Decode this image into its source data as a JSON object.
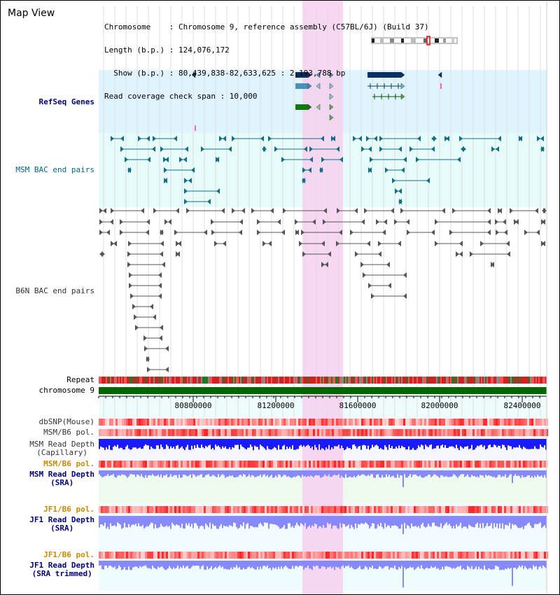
{
  "app": {
    "title": "Map View"
  },
  "info": {
    "line1": "Chromosome    : Chromosome 9, reference assembly (C57BL/6J) (Build 37)",
    "line2": "Length (b.p.) : 124,076,172",
    "line3": "  Show (b.p.) : 80,439,838-82,633,625 : 2,193,788 bp",
    "line4": "Read coverage check span : 10,000"
  },
  "tracks": {
    "refseq": "RefSeq Genes",
    "msm_bac": "MSM BAC end pairs",
    "b6n_bac": "B6N BAC end pairs",
    "repeat": "Repeat",
    "chromosome": "chromosome 9",
    "dbsnp": "dbSNP(Mouse)",
    "msm_b6_pol": "MSM/B6 pol.",
    "msm_depth_cap_1": "MSM Read Depth",
    "msm_depth_cap_2": "(Capillary)",
    "msm_b6_pol_2": "MSM/B6 pol.",
    "msm_depth_sra_1": "MSM Read Depth",
    "msm_depth_sra_2": "(SRA)",
    "jf1_b6_pol": "JF1/B6 pol.",
    "jf1_depth_sra_1": "JF1 Read Depth",
    "jf1_depth_sra_2": "(SRA)",
    "jf1_b6_pol_2": "JF1/B6 pol.",
    "jf1_depth_trim_1": "JF1 Read Depth",
    "jf1_depth_trim_2": "(SRA trimmed)"
  },
  "axis": {
    "ticks": [
      "80800000",
      "81200000",
      "81600000",
      "82000000",
      "82400000"
    ]
  },
  "colors": {
    "refseq_bg": "#e0f4ff",
    "msm_bac_bg": "#e8fbfb",
    "highlight": "#f7d0f0",
    "chromosome": "#006600",
    "depth_capillary": "#1a1aff",
    "depth_sra": "#8888ff"
  }
}
